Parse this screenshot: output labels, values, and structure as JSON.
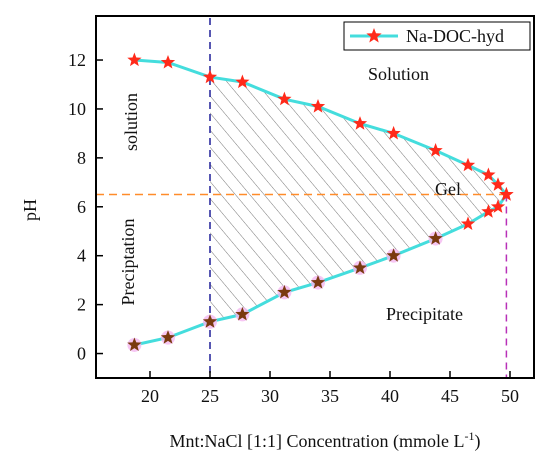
{
  "chart_data": {
    "type": "line",
    "xlabel": "Mnt:NaCl [1:1] Concentration (mmole L",
    "xlabel_superscript": "-1",
    "xlabel_suffix": ")",
    "ylabel": "pH",
    "xlim": [
      15.5,
      52
    ],
    "ylim": [
      -1,
      13.8
    ],
    "xticks": [
      20,
      25,
      30,
      35,
      40,
      45,
      50
    ],
    "yticks": [
      0,
      2,
      4,
      6,
      8,
      10,
      12
    ],
    "grid": false,
    "legend_position": "top-right",
    "colors": {
      "line": "#44dddd",
      "marker": "#ff2a1a",
      "marker_dark": "#7a3a10",
      "vline_blue": "#1f1f99",
      "vline_magenta": "#b830b8",
      "hline_orange": "#ff8c2a",
      "hatch": "#555555",
      "axis": "#000000"
    },
    "series": [
      {
        "name": "Na-DOC-hyd",
        "upper": {
          "x": [
            18.7,
            21.5,
            25.0,
            27.7,
            31.2,
            34.0,
            37.5,
            40.3,
            43.8,
            46.5,
            48.2,
            49.0,
            49.7
          ],
          "y": [
            12.0,
            11.9,
            11.3,
            11.1,
            10.4,
            10.1,
            9.4,
            9.0,
            8.3,
            7.7,
            7.3,
            6.9,
            6.5
          ]
        },
        "lower": {
          "x": [
            18.7,
            21.5,
            25.0,
            27.7,
            31.2,
            34.0,
            37.5,
            40.3,
            43.8,
            46.5,
            48.2,
            49.0,
            49.7
          ],
          "y": [
            0.35,
            0.65,
            1.3,
            1.6,
            2.5,
            2.9,
            3.5,
            4.0,
            4.7,
            5.3,
            5.8,
            6.0,
            6.5
          ]
        }
      }
    ],
    "reference_lines": {
      "vertical_blue_x": 25,
      "horizontal_orange_y": 6.5,
      "vertical_magenta_x": 49.7
    },
    "annotations": {
      "solution_upper_right": "Solution",
      "solution_left": "solution",
      "gel": "Gel",
      "precipitation_left": "Preciptation",
      "precipitate_lower_right": "Precipitate"
    }
  }
}
